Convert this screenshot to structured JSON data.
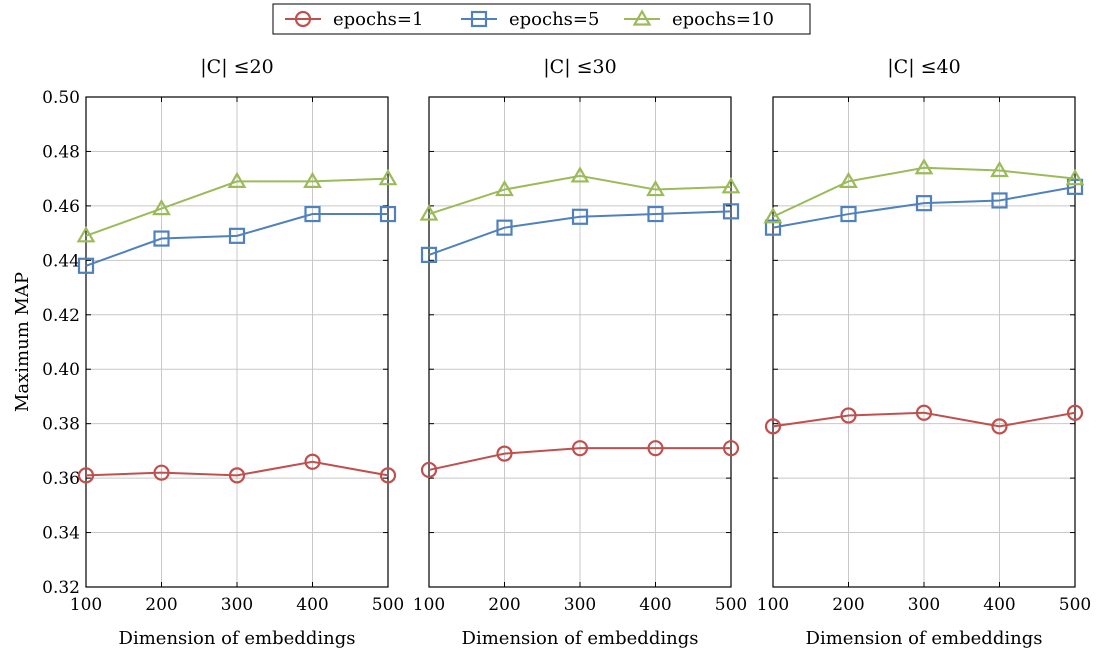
{
  "chart_data": {
    "type": "line",
    "legend": {
      "placement": "top-center",
      "entries": [
        {
          "series": "epochs=1",
          "color": "#c0504d",
          "marker": "circle"
        },
        {
          "series": "epochs=5",
          "color": "#4f81bd",
          "marker": "square"
        },
        {
          "series": "epochs=10",
          "color": "#9bbb59",
          "marker": "triangle"
        }
      ]
    },
    "ylabel": "Maximum MAP",
    "ylim": [
      0.32,
      0.5
    ],
    "yticks": [
      "0.32",
      "0.34",
      "0.36",
      "0.38",
      "0.40",
      "0.42",
      "0.44",
      "0.46",
      "0.48",
      "0.50"
    ],
    "xlabel": "Dimension of embeddings",
    "x": [
      100,
      200,
      300,
      400,
      500
    ],
    "xticks": [
      "100",
      "200",
      "300",
      "400",
      "500"
    ],
    "grid": true,
    "panels": [
      {
        "title": "|C| ≤20",
        "series": [
          {
            "name": "epochs=1",
            "values": [
              0.361,
              0.362,
              0.361,
              0.366,
              0.361
            ]
          },
          {
            "name": "epochs=5",
            "values": [
              0.438,
              0.448,
              0.449,
              0.457,
              0.457
            ]
          },
          {
            "name": "epochs=10",
            "values": [
              0.449,
              0.459,
              0.469,
              0.469,
              0.47
            ]
          }
        ]
      },
      {
        "title": "|C| ≤30",
        "series": [
          {
            "name": "epochs=1",
            "values": [
              0.363,
              0.369,
              0.371,
              0.371,
              0.371
            ]
          },
          {
            "name": "epochs=5",
            "values": [
              0.442,
              0.452,
              0.456,
              0.457,
              0.458
            ]
          },
          {
            "name": "epochs=10",
            "values": [
              0.457,
              0.466,
              0.471,
              0.466,
              0.467
            ]
          }
        ]
      },
      {
        "title": "|C| ≤40",
        "series": [
          {
            "name": "epochs=1",
            "values": [
              0.379,
              0.383,
              0.384,
              0.379,
              0.384
            ]
          },
          {
            "name": "epochs=5",
            "values": [
              0.452,
              0.457,
              0.461,
              0.462,
              0.467
            ]
          },
          {
            "name": "epochs=10",
            "values": [
              0.456,
              0.469,
              0.474,
              0.473,
              0.47
            ]
          }
        ]
      }
    ]
  }
}
